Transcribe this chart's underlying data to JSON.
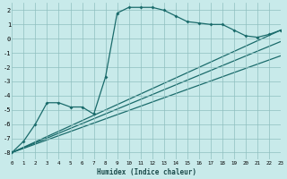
{
  "xlabel": "Humidex (Indice chaleur)",
  "bg_color": "#c8eaea",
  "grid_color": "#8fbfbf",
  "line_color": "#1a6b6b",
  "xlim": [
    0,
    23
  ],
  "ylim": [
    -8.5,
    2.5
  ],
  "yticks": [
    -8,
    -7,
    -6,
    -5,
    -4,
    -3,
    -2,
    -1,
    0,
    1,
    2
  ],
  "main_x": [
    0,
    1,
    2,
    3,
    4,
    5,
    6,
    7,
    8,
    9,
    10,
    11,
    12,
    13,
    14,
    15,
    16,
    17,
    18,
    19,
    20,
    21,
    22,
    23
  ],
  "main_y": [
    -8.0,
    -7.2,
    -6.0,
    -4.5,
    -4.5,
    -4.8,
    -4.8,
    -5.3,
    -2.7,
    1.8,
    2.2,
    2.2,
    2.2,
    2.0,
    1.6,
    1.2,
    1.1,
    1.0,
    1.0,
    0.6,
    0.2,
    0.1,
    0.3,
    0.6
  ],
  "line1_x": [
    0,
    23
  ],
  "line1_y": [
    -8.0,
    0.6
  ],
  "line2_x": [
    0,
    23
  ],
  "line2_y": [
    -8.0,
    -0.2
  ],
  "line3_x": [
    0,
    23
  ],
  "line3_y": [
    -8.0,
    -1.2
  ]
}
